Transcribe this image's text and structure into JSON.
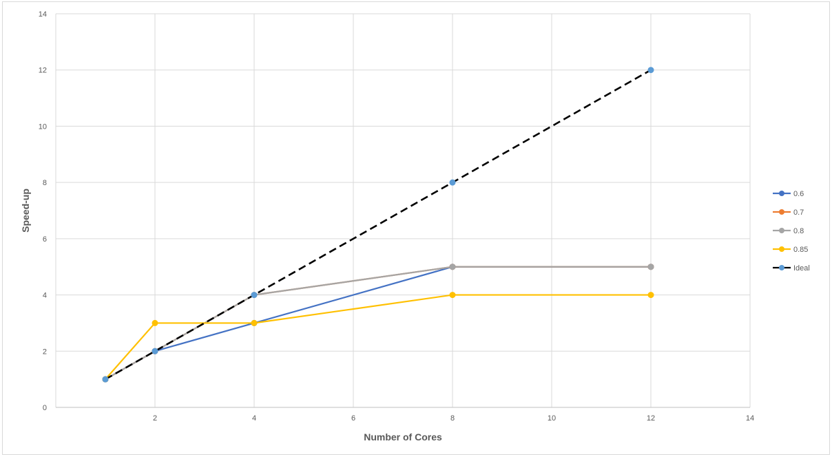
{
  "chart_data": {
    "type": "line",
    "title": "",
    "xlabel": "Number of Cores",
    "ylabel": "Speed-up",
    "xlim": [
      0,
      14
    ],
    "ylim": [
      0,
      14
    ],
    "xticks": [
      2,
      4,
      6,
      8,
      10,
      12,
      14
    ],
    "yticks": [
      0,
      2,
      4,
      6,
      8,
      10,
      12,
      14
    ],
    "grid": true,
    "legend_position": "right",
    "series": [
      {
        "name": "0.6",
        "color": "#4472c4",
        "dashed": false,
        "x": [
          1,
          2,
          4,
          8,
          12
        ],
        "y": [
          1,
          2,
          3,
          5,
          5
        ]
      },
      {
        "name": "0.7",
        "color": "#ed7d31",
        "dashed": false,
        "x": [
          1,
          2,
          4,
          8,
          12
        ],
        "y": [
          1,
          2,
          4,
          5,
          5
        ]
      },
      {
        "name": "0.8",
        "color": "#a5a5a5",
        "dashed": false,
        "x": [
          1,
          2,
          4,
          8,
          12
        ],
        "y": [
          1,
          2,
          4,
          5,
          5
        ]
      },
      {
        "name": "0.85",
        "color": "#ffc000",
        "dashed": false,
        "x": [
          1,
          2,
          4,
          8,
          12
        ],
        "y": [
          1,
          3,
          3,
          4,
          4
        ]
      },
      {
        "name": "Ideal",
        "color": "#000000",
        "marker_color": "#5b9bd5",
        "dashed": true,
        "x": [
          1,
          2,
          4,
          8,
          12
        ],
        "y": [
          1,
          2,
          4,
          8,
          12
        ]
      }
    ]
  }
}
